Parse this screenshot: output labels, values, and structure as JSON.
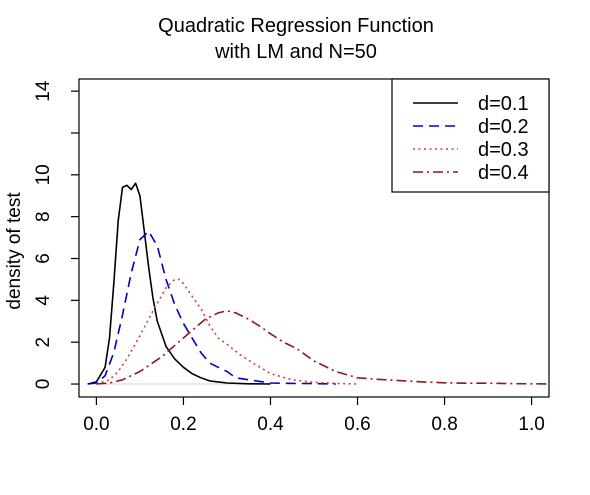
{
  "chart_data": {
    "type": "line",
    "title_line1": "Quadratic Regression Function",
    "title_line2": "with LM and N=50",
    "xlabel": "",
    "ylabel": "density of test",
    "xlim": [
      -0.04,
      1.04
    ],
    "ylim": [
      -0.62,
      14.58
    ],
    "x_ticks": [
      {
        "value": 0.0,
        "label": "0.0"
      },
      {
        "value": 0.2,
        "label": "0.2"
      },
      {
        "value": 0.4,
        "label": "0.4"
      },
      {
        "value": 0.6,
        "label": "0.6"
      },
      {
        "value": 0.8,
        "label": "0.8"
      },
      {
        "value": 1.0,
        "label": "1.0"
      }
    ],
    "y_ticks": [
      {
        "value": 0,
        "label": "0"
      },
      {
        "value": 2,
        "label": "2"
      },
      {
        "value": 4,
        "label": "4"
      },
      {
        "value": 6,
        "label": "6"
      },
      {
        "value": 8,
        "label": "8"
      },
      {
        "value": 10,
        "label": "10"
      },
      {
        "value": 12,
        "label": ""
      },
      {
        "value": 14,
        "label": "14"
      }
    ],
    "grid": false,
    "legend_position": "top-right",
    "series": [
      {
        "name": "d=0.1",
        "color": "#000000",
        "dash": "solid",
        "x": [
          -0.02,
          0.0,
          0.02,
          0.03,
          0.04,
          0.05,
          0.06,
          0.07,
          0.08,
          0.09,
          0.1,
          0.11,
          0.12,
          0.13,
          0.14,
          0.16,
          0.18,
          0.2,
          0.22,
          0.24,
          0.26,
          0.3,
          0.35,
          0.4
        ],
        "y": [
          0.0,
          0.1,
          0.8,
          2.2,
          4.8,
          7.8,
          9.4,
          9.5,
          9.3,
          9.6,
          9.0,
          7.3,
          5.6,
          4.1,
          3.0,
          1.8,
          1.2,
          0.8,
          0.5,
          0.3,
          0.15,
          0.05,
          0.01,
          0.0
        ]
      },
      {
        "name": "d=0.2",
        "color": "#0000cc",
        "dash": "long",
        "x": [
          -0.02,
          0.0,
          0.02,
          0.04,
          0.06,
          0.08,
          0.1,
          0.12,
          0.14,
          0.16,
          0.18,
          0.2,
          0.22,
          0.24,
          0.26,
          0.28,
          0.3,
          0.32,
          0.35,
          0.4,
          0.45,
          0.5,
          0.55
        ],
        "y": [
          0.0,
          0.05,
          0.4,
          1.5,
          3.3,
          5.3,
          6.9,
          7.3,
          6.6,
          5.0,
          3.8,
          2.9,
          2.2,
          1.5,
          1.0,
          0.8,
          0.6,
          0.3,
          0.2,
          0.05,
          0.03,
          0.02,
          0.0
        ]
      },
      {
        "name": "d=0.3",
        "color": "#d43f3a",
        "dash": "dotted",
        "x": [
          0.0,
          0.03,
          0.05,
          0.07,
          0.1,
          0.13,
          0.16,
          0.18,
          0.19,
          0.2,
          0.22,
          0.24,
          0.26,
          0.28,
          0.3,
          0.33,
          0.36,
          0.4,
          0.45,
          0.5,
          0.55,
          0.6
        ],
        "y": [
          0.0,
          0.2,
          0.6,
          1.2,
          2.3,
          3.5,
          4.6,
          5.0,
          5.0,
          4.8,
          4.2,
          3.6,
          2.8,
          2.2,
          1.9,
          1.4,
          1.0,
          0.5,
          0.2,
          0.08,
          0.03,
          0.0
        ]
      },
      {
        "name": "d=0.4",
        "color": "#8b1a1a",
        "dash": "dashdot",
        "x": [
          0.0,
          0.03,
          0.06,
          0.1,
          0.15,
          0.2,
          0.25,
          0.28,
          0.3,
          0.32,
          0.35,
          0.38,
          0.4,
          0.43,
          0.46,
          0.5,
          0.55,
          0.6,
          0.65,
          0.7,
          0.75,
          0.8,
          0.85,
          0.9,
          0.95,
          1.0,
          1.04
        ],
        "y": [
          0.0,
          0.05,
          0.2,
          0.6,
          1.3,
          2.2,
          3.1,
          3.4,
          3.5,
          3.4,
          3.1,
          2.7,
          2.4,
          2.0,
          1.7,
          1.1,
          0.6,
          0.3,
          0.22,
          0.16,
          0.1,
          0.06,
          0.04,
          0.04,
          0.02,
          0.01,
          0.0
        ]
      }
    ]
  }
}
